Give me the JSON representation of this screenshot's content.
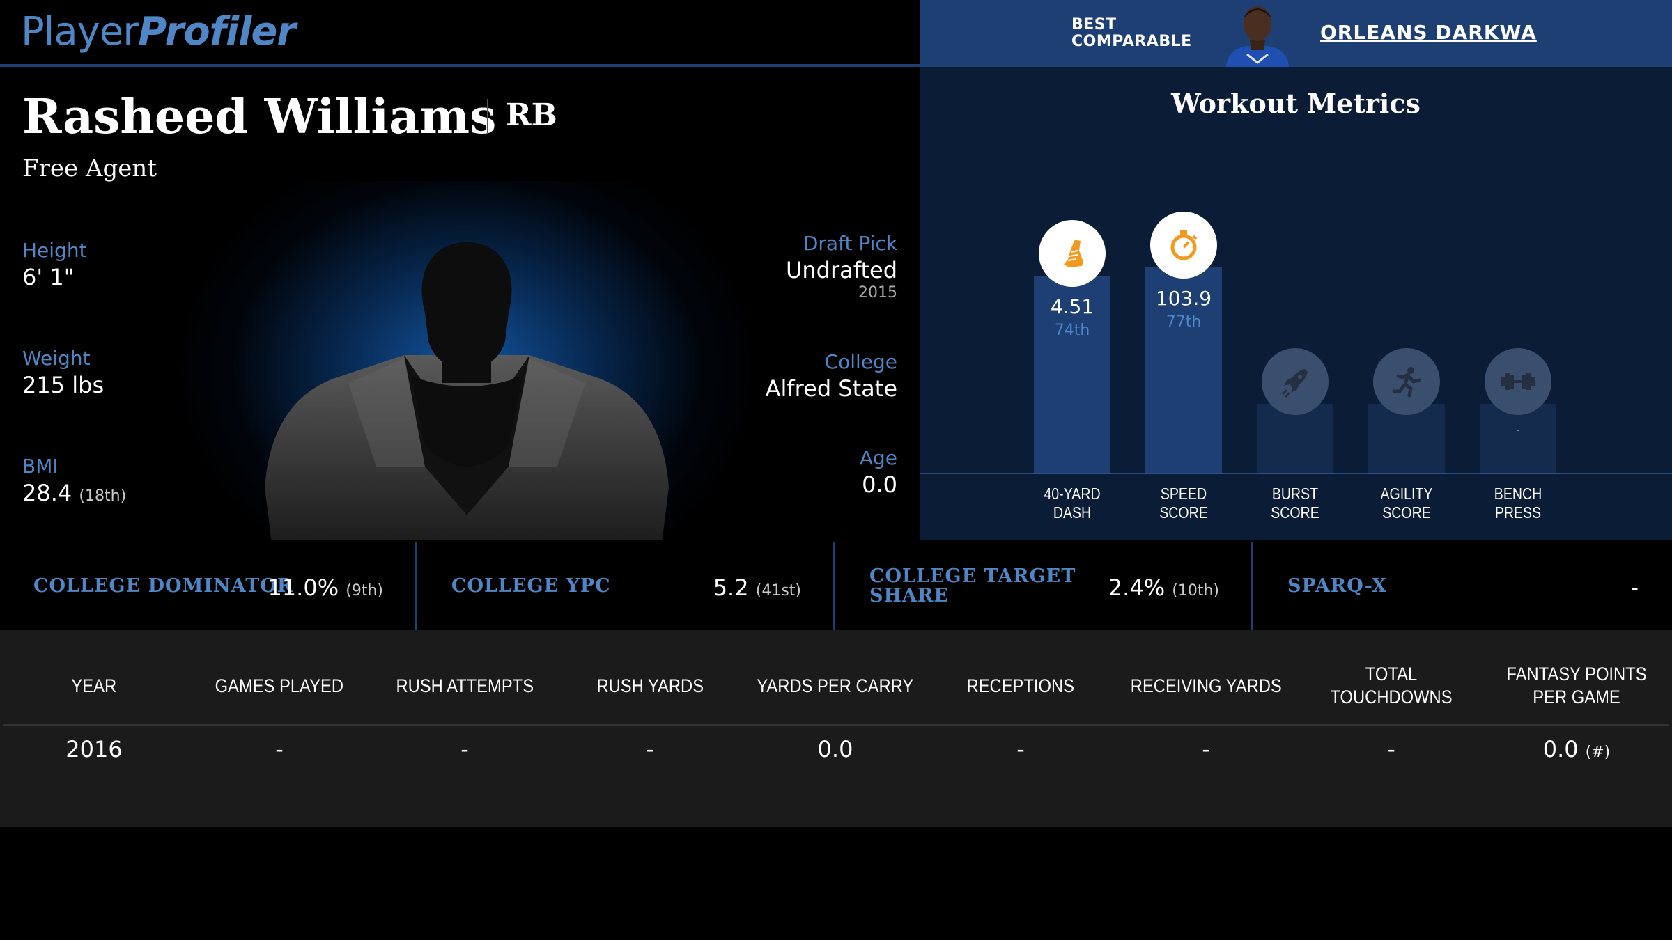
{
  "brand": {
    "part1": "Player",
    "part2": "Profiler"
  },
  "comparable": {
    "label_line1": "BEST",
    "label_line2": "COMPARABLE",
    "name": "ORLEANS DARKWA"
  },
  "player": {
    "name": "Rasheed Williams",
    "position": "RB",
    "team": "Free Agent",
    "height": {
      "label": "Height",
      "value": "6' 1\""
    },
    "weight": {
      "label": "Weight",
      "value": "215 lbs"
    },
    "bmi": {
      "label": "BMI",
      "value": "28.4",
      "rank": "(18th)"
    },
    "draft_pick": {
      "label": "Draft Pick",
      "value": "Undrafted",
      "year": "2015"
    },
    "college": {
      "label": "College",
      "value": "Alfred State"
    },
    "age": {
      "label": "Age",
      "value": "0.0"
    }
  },
  "workout": {
    "title": "Workout Metrics",
    "bars": [
      {
        "label_line1": "40-YARD",
        "label_line2": "DASH",
        "value": "4.51",
        "percentile": "74th",
        "percentile_value": 74,
        "icon": "running-shoe-icon"
      },
      {
        "label_line1": "SPEED",
        "label_line2": "SCORE",
        "value": "103.9",
        "percentile": "77th",
        "percentile_value": 77,
        "icon": "stopwatch-icon"
      },
      {
        "label_line1": "BURST",
        "label_line2": "SCORE",
        "value": "",
        "percentile": "",
        "percentile_value": null,
        "icon": "rocket-icon"
      },
      {
        "label_line1": "AGILITY",
        "label_line2": "SCORE",
        "value": "",
        "percentile": "",
        "percentile_value": null,
        "icon": "runner-icon"
      },
      {
        "label_line1": "BENCH",
        "label_line2": "PRESS",
        "value": "-",
        "percentile": "",
        "percentile_value": null,
        "icon": "dumbbell-icon"
      }
    ]
  },
  "metrics": [
    {
      "label_line1": "COLLEGE DOMINATOR",
      "label_line2": "",
      "value": "11.0%",
      "rank": "(9th)"
    },
    {
      "label_line1": "COLLEGE YPC",
      "label_line2": "",
      "value": "5.2",
      "rank": "(41st)"
    },
    {
      "label_line1": "COLLEGE TARGET",
      "label_line2": "SHARE",
      "value": "2.4%",
      "rank": "(10th)"
    },
    {
      "label_line1": "SPARQ-X",
      "label_line2": "",
      "value": "-",
      "rank": ""
    }
  ],
  "stats_table": {
    "headers": [
      "YEAR",
      "GAMES PLAYED",
      "RUSH ATTEMPTS",
      "RUSH YARDS",
      "YARDS PER CARRY",
      "RECEPTIONS",
      "RECEIVING YARDS",
      "TOTAL TOUCHDOWNS",
      "FANTASY POINTS PER GAME"
    ],
    "rows": [
      [
        "2016",
        "-",
        "-",
        "-",
        "0.0",
        "-",
        "-",
        "-",
        "0.0"
      ]
    ],
    "rank_marker": "(#)"
  }
}
